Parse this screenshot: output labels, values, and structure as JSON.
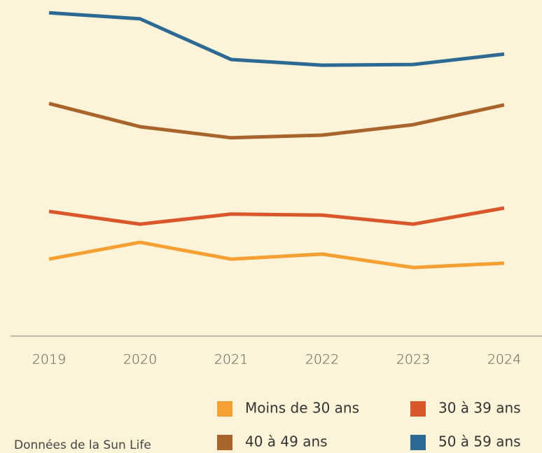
{
  "chart_data": {
    "type": "line",
    "categories": [
      "2019",
      "2020",
      "2021",
      "2022",
      "2023",
      "2024"
    ],
    "series": [
      {
        "name": "Moins de 30 ans",
        "color": "#f5a033",
        "values": [
          22.9,
          27.9,
          22.9,
          24.4,
          20.4,
          21.7
        ]
      },
      {
        "name": "30 à 39 ans",
        "color": "#d9572b",
        "values": [
          37.1,
          33.3,
          36.3,
          36.0,
          33.3,
          38.1
        ]
      },
      {
        "name": "40 à 49 ans",
        "color": "#a8642a",
        "values": [
          69.2,
          62.3,
          59.0,
          59.8,
          62.9,
          68.8
        ]
      },
      {
        "name": "50 à 59 ans",
        "color": "#2d6a93",
        "values": [
          96.2,
          94.4,
          82.3,
          80.6,
          80.8,
          83.9
        ]
      }
    ],
    "ylim": [
      0,
      100
    ],
    "source": "Données de la Sun Life"
  }
}
